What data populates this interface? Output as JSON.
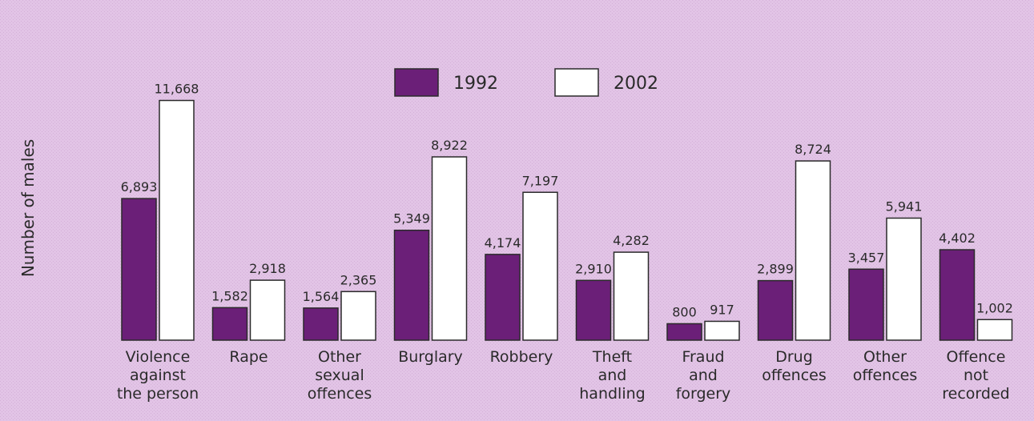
{
  "chart_data": {
    "type": "bar",
    "title": "",
    "xlabel": "",
    "ylabel": "Number of males",
    "ylim": [
      0,
      15000
    ],
    "yticks": [
      "0",
      "5,000",
      "10,000",
      "15,000"
    ],
    "ytick_values": [
      0,
      5000,
      10000,
      15000
    ],
    "grid": false,
    "legend_position": "top-center",
    "categories": [
      [
        "Violence",
        "against",
        "the person"
      ],
      [
        "Rape"
      ],
      [
        "Other",
        "sexual",
        "offences"
      ],
      [
        "Burglary"
      ],
      [
        "Robbery"
      ],
      [
        "Theft",
        "and",
        "handling"
      ],
      [
        "Fraud",
        "and",
        "forgery"
      ],
      [
        "Drug",
        "offences"
      ],
      [
        "Other",
        "offences"
      ],
      [
        "Offence",
        "not",
        "recorded"
      ]
    ],
    "series": [
      {
        "name": "1992",
        "color": "#6b1f78",
        "values": [
          6893,
          1582,
          1564,
          5349,
          4174,
          2910,
          800,
          2899,
          3457,
          4402
        ],
        "labels": [
          "6,893",
          "1,582",
          "1,564",
          "5,349",
          "4,174",
          "2,910",
          "800",
          "2,899",
          "3,457",
          "4,402"
        ]
      },
      {
        "name": "2002",
        "color": "#ffffff",
        "values": [
          11668,
          2918,
          2365,
          8922,
          7197,
          4282,
          917,
          8724,
          5941,
          1002
        ],
        "labels": [
          "11,668",
          "2,918",
          "2,365",
          "8,922",
          "7,197",
          "4,282",
          "917",
          "8,724",
          "5,941",
          "1,002"
        ]
      }
    ]
  }
}
